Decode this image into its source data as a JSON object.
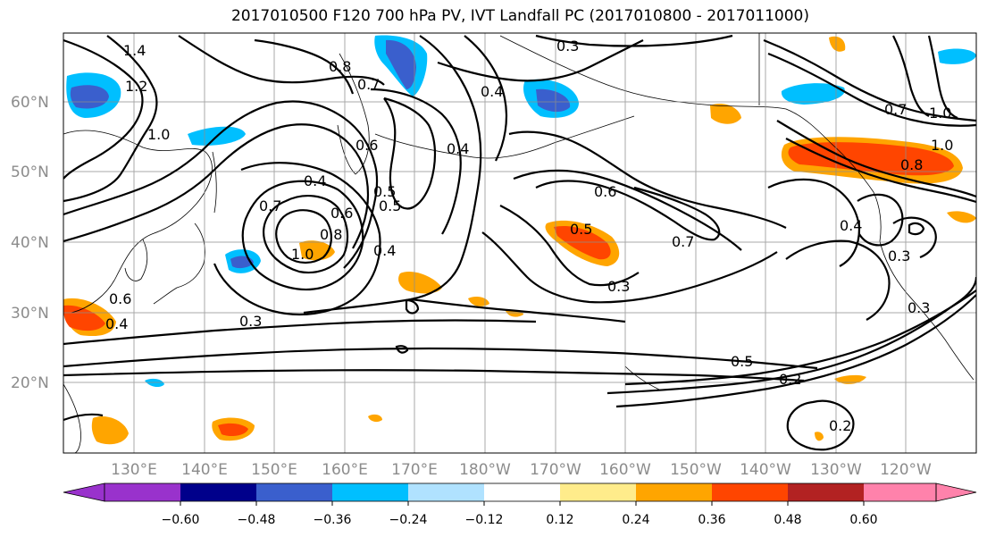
{
  "title": "2017010500 F120 700 hPa PV, IVT Landfall PC (2017010800 - 2017011000)",
  "lat_labels": [
    "60°N",
    "50°N",
    "40°N",
    "30°N",
    "20°N"
  ],
  "lon_labels": [
    "130°E",
    "140°E",
    "150°E",
    "160°E",
    "170°E",
    "180°W",
    "170°W",
    "160°W",
    "150°W",
    "140°W",
    "130°W",
    "120°W"
  ],
  "contour_labels": [
    "1.4",
    "1.2",
    "1.0",
    "0.8",
    "0.7",
    "0.6",
    "0.5",
    "0.4",
    "0.3",
    "0.4",
    "0.4",
    "0.6",
    "0.5",
    "0.7",
    "0.3",
    "0.5",
    "0.2",
    "0.2",
    "0.3",
    "0.3",
    "0.4",
    "1.0",
    "0.8",
    "0.7",
    "1.0",
    "0.8",
    "0.3",
    "0.6",
    "0.4",
    "1.0",
    "0.7",
    "0.6",
    "0.4",
    "0.5"
  ],
  "colorbar": {
    "ticks": [
      "−0.60",
      "−0.48",
      "−0.36",
      "−0.24",
      "−0.12",
      "0.12",
      "0.24",
      "0.36",
      "0.48",
      "0.60"
    ],
    "colors": [
      "#9932cc",
      "#00008b",
      "#3a5fcd",
      "#00bfff",
      "#b0e2ff",
      "#ffffff",
      "#ffec8b",
      "#ffa500",
      "#ff4500",
      "#b22222",
      "#ff82ab"
    ]
  }
}
